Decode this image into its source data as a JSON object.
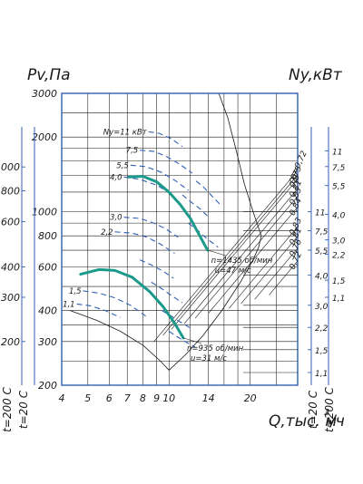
{
  "chart_data": {
    "type": "line",
    "x_axis": {
      "label": "Q,тыс. м",
      "label_superscript": "3",
      "label_suffix": "/ч",
      "scale": "log",
      "range": [
        4,
        30
      ],
      "ticks": [
        4,
        5,
        6,
        7,
        8,
        9,
        10,
        14,
        20
      ],
      "tick_labels": [
        "4",
        "5",
        "6",
        "7",
        "8",
        "9",
        "10",
        "14",
        "20"
      ],
      "grid": [
        4,
        5,
        6,
        7,
        8,
        9,
        10,
        12,
        14,
        16,
        18,
        20,
        25,
        30
      ]
    },
    "y_axis": {
      "label": "Pv,Па",
      "scale": "log",
      "range": [
        200,
        3000
      ],
      "ticks": [
        200,
        300,
        400,
        600,
        800,
        1000,
        2000,
        3000
      ],
      "tick_labels": [
        "200",
        "300",
        "400",
        "600",
        "800",
        "1000",
        "2000",
        "3000"
      ],
      "grid": [
        200,
        250,
        300,
        350,
        400,
        500,
        600,
        700,
        800,
        900,
        1000,
        1200,
        1400,
        1600,
        1800,
        2000,
        2500,
        3000
      ]
    },
    "outer_scales": [
      {
        "side": "left",
        "caption": "t=200 С",
        "labels": [
          {
            "text": "1000",
            "y": 1515
          },
          {
            "text": "800",
            "y": 1215
          },
          {
            "text": "600",
            "y": 912
          },
          {
            "text": "400",
            "y": 600
          },
          {
            "text": "300",
            "y": 452
          },
          {
            "text": "200",
            "y": 300
          }
        ]
      },
      {
        "side": "left",
        "caption": "t=20 С",
        "labels": []
      },
      {
        "side": "right",
        "caption": "t=20 С",
        "labels": [
          {
            "text": "11",
            "y": 1000
          },
          {
            "text": "7,5",
            "y": 838
          },
          {
            "text": "5,5",
            "y": 700
          },
          {
            "text": "4,0",
            "y": 555
          },
          {
            "text": "3,0",
            "y": 420
          },
          {
            "text": "2,2",
            "y": 342
          },
          {
            "text": "1,5",
            "y": 278
          },
          {
            "text": "1,1",
            "y": 225
          }
        ]
      },
      {
        "side": "right",
        "caption": "t=200 С",
        "labels": [
          {
            "text": "11",
            "y": 1760
          },
          {
            "text": "7,5",
            "y": 1520
          },
          {
            "text": "5,5",
            "y": 1275
          },
          {
            "text": "4,0",
            "y": 975
          },
          {
            "text": "3,0",
            "y": 770
          },
          {
            "text": "2,2",
            "y": 675
          },
          {
            "text": "1,5",
            "y": 530
          },
          {
            "text": "1,1",
            "y": 452
          }
        ]
      }
    ],
    "power_axis_label": "Ny,кВт",
    "efficiency_lines": [
      {
        "label": "η=0,72",
        "angle_deg": 50,
        "x0": 8.8
      },
      {
        "label": "0,75",
        "angle_deg": 50,
        "x0": 9.5
      },
      {
        "label": "0,8",
        "angle_deg": 50,
        "x0": 10.2
      },
      {
        "label": "0,81",
        "angle_deg": 50,
        "x0": 11.4
      },
      {
        "label": "0,83",
        "angle_deg": 50,
        "x0": 12.5
      },
      {
        "label": "0,84",
        "angle_deg": 50,
        "x0": 14
      },
      {
        "label": "0,83",
        "angle_deg": 50,
        "x0": 16.7
      },
      {
        "label": "0,81",
        "angle_deg": 50,
        "x0": 18.5
      },
      {
        "label": "0,76",
        "angle_deg": 50,
        "x0": 20.8
      },
      {
        "label": "0,72",
        "angle_deg": 50,
        "x0": 23.5
      }
    ],
    "series": [
      {
        "name": "n=1435 об/мин",
        "annotation": "u=47 м/с",
        "points": [
          [
            7.1,
            1380
          ],
          [
            8,
            1390
          ],
          [
            9,
            1320
          ],
          [
            10,
            1200
          ],
          [
            11,
            1070
          ],
          [
            12,
            940
          ],
          [
            13,
            800
          ],
          [
            13.9,
            700
          ]
        ]
      },
      {
        "name": "n=935 об/мин",
        "annotation": "u=31 м/с",
        "points": [
          [
            4.7,
            560
          ],
          [
            5.5,
            585
          ],
          [
            6.3,
            580
          ],
          [
            7.3,
            545
          ],
          [
            8.5,
            475
          ],
          [
            9.5,
            415
          ],
          [
            10.5,
            355
          ],
          [
            11.3,
            310
          ]
        ]
      }
    ],
    "power_arcs": [
      {
        "label": "Ny=11 кВт",
        "points": [
          [
            8.4,
            2100
          ],
          [
            9.2,
            2070
          ],
          [
            10.2,
            1970
          ],
          [
            11.2,
            1830
          ]
        ]
      },
      {
        "label": "7,5",
        "points": [
          [
            7.8,
            1770
          ],
          [
            8.8,
            1750
          ],
          [
            9.8,
            1670
          ],
          [
            11,
            1550
          ],
          [
            12.2,
            1430
          ]
        ]
      },
      {
        "label": "5,5",
        "points": [
          [
            7.2,
            1540
          ],
          [
            8.2,
            1520
          ],
          [
            9.4,
            1440
          ],
          [
            10.6,
            1330
          ],
          [
            11.8,
            1220
          ]
        ]
      },
      {
        "label": "4,0",
        "points": [
          [
            6.8,
            1380
          ],
          [
            7.8,
            1350
          ],
          [
            9,
            1280
          ],
          [
            10.2,
            1180
          ]
        ]
      },
      {
        "label": "3,0",
        "points": [
          [
            6.8,
            950
          ],
          [
            7.8,
            940
          ],
          [
            8.8,
            900
          ],
          [
            9.8,
            850
          ],
          [
            10.8,
            790
          ]
        ]
      },
      {
        "label": "2,2",
        "points": [
          [
            6.3,
            830
          ],
          [
            7.3,
            820
          ],
          [
            8.3,
            790
          ],
          [
            9.3,
            740
          ],
          [
            10.5,
            680
          ]
        ]
      },
      {
        "label": "1,5",
        "points": [
          [
            4.8,
            480
          ],
          [
            5.5,
            470
          ],
          [
            6.3,
            450
          ],
          [
            7.2,
            420
          ],
          [
            8.2,
            380
          ]
        ]
      },
      {
        "label": "1,1",
        "points": [
          [
            4.55,
            425
          ],
          [
            5.1,
            418
          ],
          [
            5.8,
            400
          ],
          [
            6.6,
            375
          ]
        ]
      }
    ],
    "extra_arcs": [
      {
        "points": [
          [
            12.6,
            1330
          ],
          [
            13.4,
            1260
          ],
          [
            14.4,
            1160
          ],
          [
            15.6,
            1060
          ]
        ]
      },
      {
        "points": [
          [
            11.2,
            1170
          ],
          [
            12,
            1100
          ],
          [
            13,
            1030
          ],
          [
            14.2,
            940
          ]
        ]
      },
      {
        "points": [
          [
            11.8,
            900
          ],
          [
            12.8,
            840
          ],
          [
            13.8,
            780
          ],
          [
            15.2,
            720
          ]
        ]
      },
      {
        "points": [
          [
            7.8,
            640
          ],
          [
            8.6,
            610
          ],
          [
            9.4,
            580
          ],
          [
            10.4,
            540
          ]
        ]
      },
      {
        "points": [
          [
            8.6,
            520
          ],
          [
            9.4,
            490
          ],
          [
            10.2,
            460
          ],
          [
            11.2,
            430
          ]
        ]
      },
      {
        "points": [
          [
            9.4,
            400
          ],
          [
            10.2,
            380
          ],
          [
            11,
            360
          ],
          [
            12,
            340
          ]
        ]
      },
      {
        "points": [
          [
            10,
            330
          ],
          [
            10.8,
            312
          ],
          [
            11.6,
            298
          ],
          [
            12.5,
            285
          ]
        ]
      }
    ],
    "boundary": [
      [
        4.3,
        400
      ],
      [
        5.4,
        365
      ],
      [
        6.6,
        330
      ],
      [
        8,
        290
      ],
      [
        9.3,
        250
      ],
      [
        10,
        230
      ],
      [
        11.5,
        265
      ],
      [
        13.4,
        318
      ],
      [
        15.7,
        400
      ],
      [
        18.4,
        520
      ],
      [
        20.5,
        640
      ],
      [
        21.5,
        720
      ],
      [
        22,
        800
      ],
      [
        20.5,
        1000
      ],
      [
        19,
        1300
      ],
      [
        17.8,
        1750
      ],
      [
        16.5,
        2400
      ],
      [
        15.3,
        3000
      ]
    ]
  }
}
